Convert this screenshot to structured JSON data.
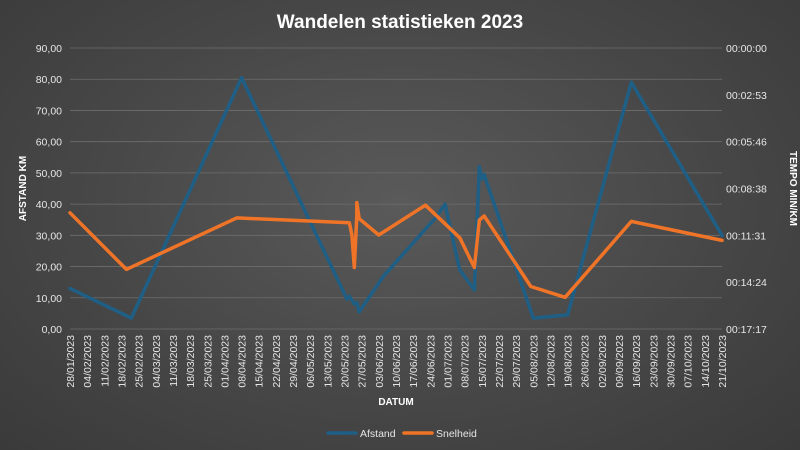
{
  "chart_data": {
    "type": "line",
    "title": "Wandelen statistieken 2023",
    "xlabel": "DATUM",
    "ylabel": "AFSTAND KM",
    "y2label": "TEMPO MIN/KM",
    "x_range": [
      "28/01/2023",
      "21/10/2023"
    ],
    "x_ticks": [
      "28/01/2023",
      "04/02/2023",
      "11/02/2023",
      "18/02/2023",
      "25/02/2023",
      "04/03/2023",
      "11/03/2023",
      "18/03/2023",
      "25/03/2023",
      "01/04/2023",
      "08/04/2023",
      "15/04/2023",
      "22/04/2023",
      "29/04/2023",
      "06/05/2023",
      "13/05/2023",
      "20/05/2023",
      "27/05/2023",
      "03/06/2023",
      "10/06/2023",
      "17/06/2023",
      "24/06/2023",
      "01/07/2023",
      "08/07/2023",
      "15/07/2023",
      "22/07/2023",
      "29/07/2023",
      "05/08/2023",
      "12/08/2023",
      "19/08/2023",
      "26/08/2023",
      "02/09/2023",
      "09/09/2023",
      "16/09/2023",
      "23/09/2023",
      "30/09/2023",
      "07/10/2023",
      "14/10/2023",
      "21/10/2023"
    ],
    "ylim": [
      0,
      90
    ],
    "y_ticks": [
      "0,00",
      "10,00",
      "20,00",
      "30,00",
      "40,00",
      "50,00",
      "60,00",
      "70,00",
      "80,00",
      "90,00"
    ],
    "y2_ticks": [
      "00:00:00",
      "00:02:53",
      "00:05:46",
      "00:08:38",
      "00:11:31",
      "00:14:24",
      "00:17:17"
    ],
    "y2_inverted": true,
    "legend_position": "bottom",
    "series": [
      {
        "name": "Afstand",
        "axis": "left",
        "color": "#1f5f86",
        "points": [
          [
            "28/01/2023",
            13
          ],
          [
            "22/02/2023",
            3.5
          ],
          [
            "08/04/2023",
            80.5
          ],
          [
            "21/05/2023",
            9.5
          ],
          [
            "22/05/2023",
            10.5
          ],
          [
            "24/05/2023",
            8
          ],
          [
            "25/05/2023",
            8.5
          ],
          [
            "26/05/2023",
            5.5
          ],
          [
            "05/06/2023",
            17
          ],
          [
            "26/06/2023",
            35.5
          ],
          [
            "30/06/2023",
            40
          ],
          [
            "06/07/2023",
            19
          ],
          [
            "12/07/2023",
            12.5
          ],
          [
            "14/07/2023",
            52
          ],
          [
            "15/07/2023",
            48
          ],
          [
            "16/07/2023",
            49.5
          ],
          [
            "17/07/2023",
            47
          ],
          [
            "05/08/2023",
            3.5
          ],
          [
            "19/08/2023",
            4.5
          ],
          [
            "14/09/2023",
            79
          ],
          [
            "21/10/2023",
            30
          ]
        ]
      },
      {
        "name": "Snelheid",
        "axis": "right",
        "color": "#f07427",
        "points": [
          [
            "28/01/2023",
            "00:10:08"
          ],
          [
            "20/02/2023",
            "00:13:37"
          ],
          [
            "06/04/2023",
            "00:10:27"
          ],
          [
            "22/05/2023",
            "00:10:45"
          ],
          [
            "23/05/2023",
            "00:11:30"
          ],
          [
            "24/05/2023",
            "00:13:30"
          ],
          [
            "25/05/2023",
            "00:10:20"
          ],
          [
            "25/05/2023",
            "00:09:30"
          ],
          [
            "26/05/2023",
            "00:10:30"
          ],
          [
            "03/06/2023",
            "00:11:30"
          ],
          [
            "22/06/2023",
            "00:09:40"
          ],
          [
            "06/07/2023",
            "00:11:40"
          ],
          [
            "12/07/2023",
            "00:13:30"
          ],
          [
            "14/07/2023",
            "00:10:35"
          ],
          [
            "16/07/2023",
            "00:10:20"
          ],
          [
            "04/08/2023",
            "00:14:40"
          ],
          [
            "18/08/2023",
            "00:15:20"
          ],
          [
            "14/09/2023",
            "00:10:40"
          ],
          [
            "21/10/2023",
            "00:11:50"
          ]
        ]
      }
    ]
  }
}
